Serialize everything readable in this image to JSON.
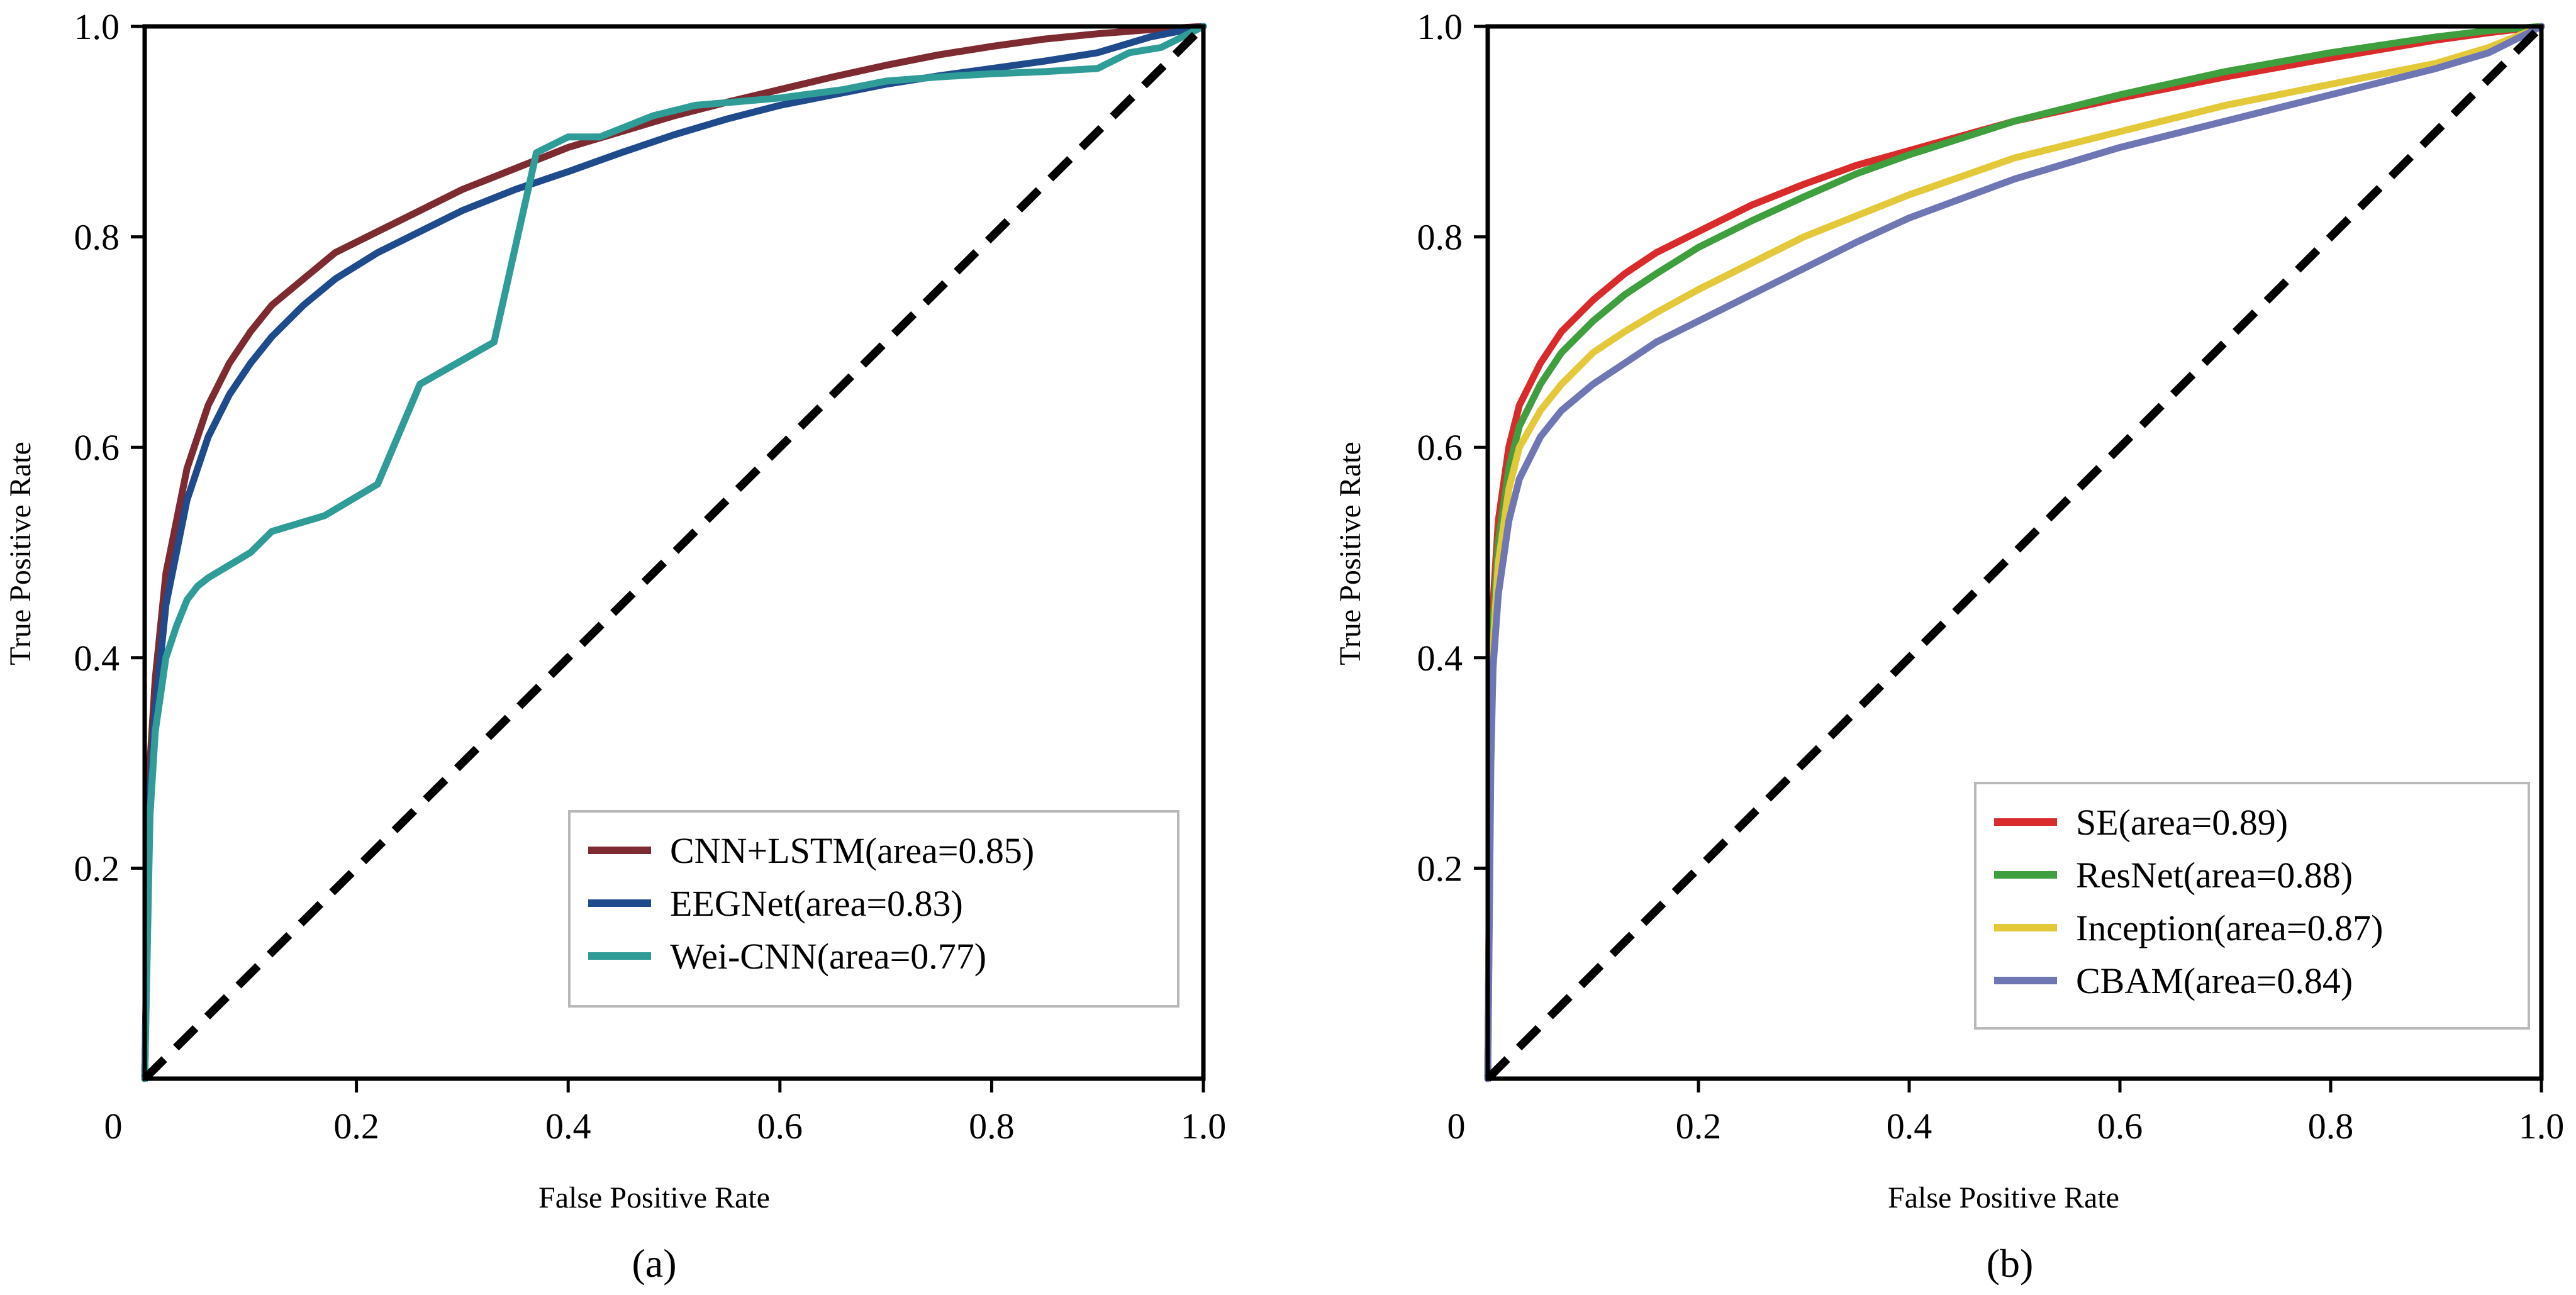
{
  "chart_data": [
    {
      "type": "line",
      "caption": "(a)",
      "xlabel": "False Positive Rate",
      "ylabel": "True Positive Rate",
      "xlim": [
        0,
        1
      ],
      "ylim": [
        0,
        1
      ],
      "xticks": [
        "0",
        "0.2",
        "0.4",
        "0.6",
        "0.8",
        "1.0"
      ],
      "yticks": [
        "0.2",
        "0.4",
        "0.6",
        "0.8",
        "1.0"
      ],
      "legend_position": "lower-right",
      "diagonal": {
        "name": "chance",
        "color": "#000000",
        "style": "dashed"
      },
      "series": [
        {
          "name": "CNN+LSTM(area=0.85)",
          "color": "#7d2a30",
          "x": [
            0,
            0.005,
            0.01,
            0.02,
            0.04,
            0.06,
            0.08,
            0.1,
            0.12,
            0.15,
            0.18,
            0.22,
            0.26,
            0.3,
            0.35,
            0.4,
            0.45,
            0.5,
            0.55,
            0.6,
            0.65,
            0.7,
            0.75,
            0.8,
            0.85,
            0.9,
            0.95,
            1.0
          ],
          "y": [
            0,
            0.3,
            0.38,
            0.48,
            0.58,
            0.64,
            0.68,
            0.71,
            0.735,
            0.76,
            0.785,
            0.805,
            0.825,
            0.845,
            0.865,
            0.885,
            0.9,
            0.915,
            0.928,
            0.94,
            0.952,
            0.963,
            0.973,
            0.981,
            0.988,
            0.993,
            0.997,
            1.0
          ]
        },
        {
          "name": "EEGNet(area=0.83)",
          "color": "#1f4a8c",
          "x": [
            0,
            0.005,
            0.01,
            0.02,
            0.04,
            0.06,
            0.08,
            0.1,
            0.12,
            0.15,
            0.18,
            0.22,
            0.26,
            0.3,
            0.35,
            0.4,
            0.45,
            0.5,
            0.55,
            0.6,
            0.65,
            0.7,
            0.75,
            0.8,
            0.85,
            0.9,
            0.95,
            1.0
          ],
          "y": [
            0,
            0.27,
            0.35,
            0.45,
            0.55,
            0.61,
            0.65,
            0.68,
            0.705,
            0.735,
            0.76,
            0.785,
            0.805,
            0.825,
            0.845,
            0.862,
            0.88,
            0.897,
            0.912,
            0.925,
            0.935,
            0.945,
            0.953,
            0.96,
            0.967,
            0.975,
            0.99,
            1.0
          ]
        },
        {
          "name": "Wei-CNN(area=0.77)",
          "color": "#2f9c98",
          "x": [
            0,
            0.005,
            0.01,
            0.02,
            0.03,
            0.04,
            0.05,
            0.06,
            0.08,
            0.1,
            0.12,
            0.17,
            0.22,
            0.26,
            0.33,
            0.37,
            0.4,
            0.43,
            0.48,
            0.52,
            0.6,
            0.66,
            0.7,
            0.75,
            0.8,
            0.85,
            0.9,
            0.93,
            0.96,
            1.0
          ],
          "y": [
            0,
            0.25,
            0.33,
            0.4,
            0.43,
            0.455,
            0.468,
            0.476,
            0.488,
            0.5,
            0.52,
            0.535,
            0.565,
            0.66,
            0.7,
            0.88,
            0.895,
            0.895,
            0.915,
            0.925,
            0.932,
            0.94,
            0.948,
            0.952,
            0.955,
            0.957,
            0.96,
            0.975,
            0.98,
            1.0
          ]
        }
      ]
    },
    {
      "type": "line",
      "caption": "(b)",
      "xlabel": "False Positive Rate",
      "ylabel": "True Positive Rate",
      "xlim": [
        0,
        1
      ],
      "ylim": [
        0,
        1
      ],
      "xticks": [
        "0",
        "0.2",
        "0.4",
        "0.6",
        "0.8",
        "1.0"
      ],
      "yticks": [
        "0.2",
        "0.4",
        "0.6",
        "0.8",
        "1.0"
      ],
      "legend_position": "lower-right",
      "diagonal": {
        "name": "chance",
        "color": "#000000",
        "style": "dashed"
      },
      "series": [
        {
          "name": "SE(area=0.89)",
          "color": "#d92b2b",
          "x": [
            0,
            0.003,
            0.005,
            0.01,
            0.02,
            0.03,
            0.05,
            0.07,
            0.1,
            0.13,
            0.16,
            0.2,
            0.25,
            0.3,
            0.35,
            0.4,
            0.5,
            0.6,
            0.7,
            0.8,
            0.9,
            0.95,
            1.0
          ],
          "y": [
            0,
            0.35,
            0.45,
            0.53,
            0.6,
            0.64,
            0.68,
            0.71,
            0.74,
            0.765,
            0.785,
            0.805,
            0.83,
            0.85,
            0.868,
            0.882,
            0.91,
            0.932,
            0.952,
            0.97,
            0.987,
            0.994,
            1.0
          ]
        },
        {
          "name": "ResNet(area=0.88)",
          "color": "#3f9e3d",
          "x": [
            0,
            0.003,
            0.005,
            0.01,
            0.02,
            0.03,
            0.05,
            0.07,
            0.1,
            0.13,
            0.16,
            0.2,
            0.25,
            0.3,
            0.35,
            0.4,
            0.5,
            0.6,
            0.7,
            0.8,
            0.9,
            0.95,
            1.0
          ],
          "y": [
            0,
            0.33,
            0.43,
            0.51,
            0.58,
            0.62,
            0.66,
            0.69,
            0.72,
            0.745,
            0.765,
            0.79,
            0.815,
            0.838,
            0.86,
            0.878,
            0.91,
            0.935,
            0.957,
            0.975,
            0.99,
            0.996,
            1.0
          ]
        },
        {
          "name": "Inception(area=0.87)",
          "color": "#e3c93a",
          "x": [
            0,
            0.003,
            0.005,
            0.01,
            0.02,
            0.03,
            0.05,
            0.07,
            0.1,
            0.13,
            0.16,
            0.2,
            0.25,
            0.3,
            0.35,
            0.4,
            0.5,
            0.6,
            0.7,
            0.8,
            0.9,
            0.95,
            1.0
          ],
          "y": [
            0,
            0.32,
            0.41,
            0.49,
            0.56,
            0.6,
            0.635,
            0.66,
            0.69,
            0.71,
            0.728,
            0.75,
            0.775,
            0.8,
            0.82,
            0.84,
            0.875,
            0.9,
            0.925,
            0.945,
            0.965,
            0.98,
            1.0
          ]
        },
        {
          "name": "CBAM(area=0.84)",
          "color": "#6f76b4",
          "x": [
            0,
            0.003,
            0.005,
            0.01,
            0.02,
            0.03,
            0.05,
            0.07,
            0.1,
            0.13,
            0.16,
            0.2,
            0.25,
            0.3,
            0.35,
            0.4,
            0.5,
            0.6,
            0.7,
            0.8,
            0.9,
            0.95,
            1.0
          ],
          "y": [
            0,
            0.3,
            0.39,
            0.46,
            0.53,
            0.57,
            0.61,
            0.635,
            0.66,
            0.68,
            0.7,
            0.72,
            0.745,
            0.77,
            0.795,
            0.818,
            0.855,
            0.885,
            0.91,
            0.935,
            0.96,
            0.975,
            1.0
          ]
        }
      ]
    }
  ]
}
